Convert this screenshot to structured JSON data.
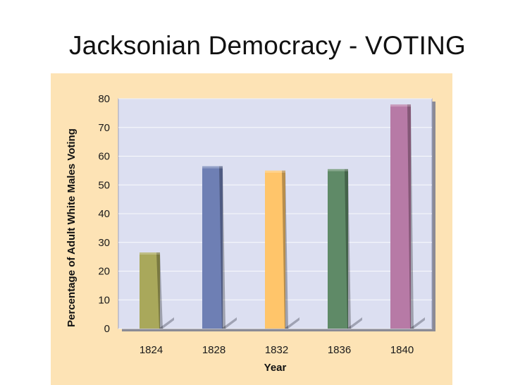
{
  "slide": {
    "title": "Jacksonian Democracy - VOTING"
  },
  "chart_data": {
    "type": "bar",
    "title": "",
    "xlabel": "Year",
    "ylabel": "Percentage of Adult White Males Voting",
    "categories": [
      "1824",
      "1828",
      "1832",
      "1836",
      "1840"
    ],
    "values": [
      26.5,
      56.5,
      55,
      55.5,
      78
    ],
    "colors": [
      "#a9a85b",
      "#6e7fb4",
      "#ffc56a",
      "#5f8a67",
      "#b77aa6"
    ],
    "ylim": [
      0,
      80
    ],
    "yticks": [
      0,
      10,
      20,
      30,
      40,
      50,
      60,
      70,
      80
    ],
    "grid": true,
    "legend": "none",
    "plot_background": "#dcdff1",
    "panel_background": "#fde3b5"
  }
}
